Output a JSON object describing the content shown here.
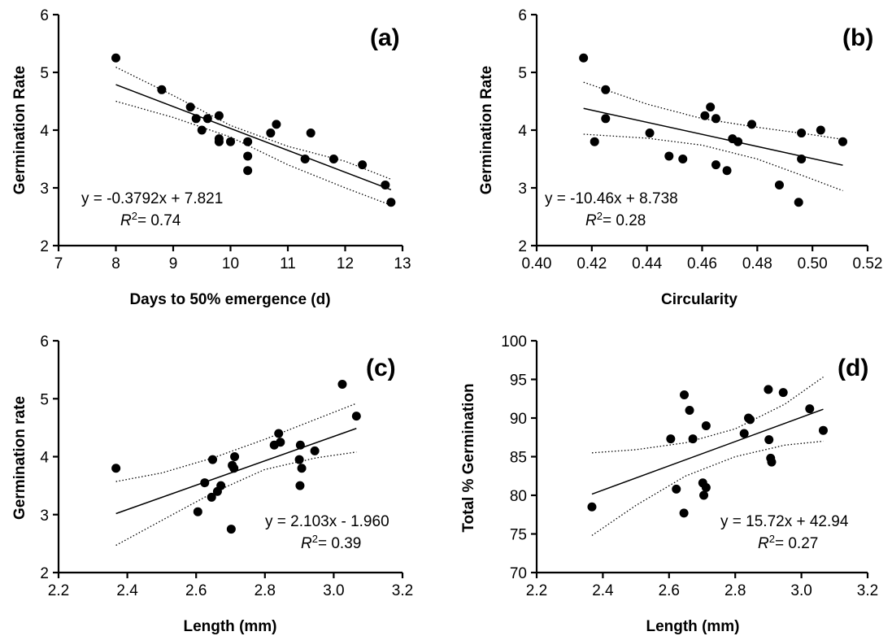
{
  "chart_data": [
    {
      "type": "scatter",
      "panel": "(a)",
      "xlabel": "Days to 50% emergence (d)",
      "ylabel": "Germination Rate",
      "xlim": [
        7,
        13
      ],
      "ylim": [
        2,
        6
      ],
      "xticks": [
        "7",
        "8",
        "9",
        "10",
        "11",
        "12",
        "13"
      ],
      "yticks": [
        "2",
        "3",
        "4",
        "5",
        "6"
      ],
      "points": [
        [
          8.0,
          5.25
        ],
        [
          8.8,
          4.7
        ],
        [
          9.3,
          4.4
        ],
        [
          9.4,
          4.2
        ],
        [
          9.5,
          4.0
        ],
        [
          9.6,
          4.2
        ],
        [
          9.8,
          4.25
        ],
        [
          9.8,
          3.85
        ],
        [
          9.8,
          3.8
        ],
        [
          10.0,
          3.8
        ],
        [
          10.3,
          3.8
        ],
        [
          10.3,
          3.55
        ],
        [
          10.3,
          3.3
        ],
        [
          10.7,
          3.95
        ],
        [
          10.8,
          4.1
        ],
        [
          11.3,
          3.5
        ],
        [
          11.4,
          3.95
        ],
        [
          11.8,
          3.5
        ],
        [
          12.3,
          3.4
        ],
        [
          12.7,
          3.05
        ],
        [
          12.8,
          2.75
        ]
      ],
      "fit": {
        "slope": -0.3792,
        "intercept": 7.821,
        "x_range": [
          8.0,
          12.8
        ]
      },
      "ci_upper": [
        [
          8.0,
          5.09
        ],
        [
          9.0,
          4.6
        ],
        [
          10.0,
          4.08
        ],
        [
          11.0,
          3.72
        ],
        [
          12.0,
          3.46
        ],
        [
          12.8,
          3.15
        ]
      ],
      "ci_lower": [
        [
          8.0,
          4.5
        ],
        [
          9.0,
          4.22
        ],
        [
          10.0,
          3.88
        ],
        [
          11.0,
          3.4
        ],
        [
          12.0,
          3.0
        ],
        [
          12.8,
          2.7
        ]
      ],
      "equation": "y = -0.3792x + 7.821",
      "r2_label": "R",
      "r2_sup": "2",
      "r2_value": "= 0.74"
    },
    {
      "type": "scatter",
      "panel": "(b)",
      "xlabel": "Circularity",
      "ylabel": "Germination Rate",
      "xlim": [
        0.4,
        0.52
      ],
      "ylim": [
        2,
        6
      ],
      "xticks": [
        "0.40",
        "0.42",
        "0.44",
        "0.46",
        "0.48",
        "0.50",
        "0.52"
      ],
      "yticks": [
        "2",
        "3",
        "4",
        "5",
        "6"
      ],
      "points": [
        [
          0.417,
          5.25
        ],
        [
          0.421,
          3.8
        ],
        [
          0.425,
          4.7
        ],
        [
          0.425,
          4.2
        ],
        [
          0.441,
          3.95
        ],
        [
          0.448,
          3.55
        ],
        [
          0.453,
          3.5
        ],
        [
          0.461,
          4.25
        ],
        [
          0.463,
          4.4
        ],
        [
          0.465,
          4.2
        ],
        [
          0.465,
          3.4
        ],
        [
          0.469,
          3.3
        ],
        [
          0.471,
          3.85
        ],
        [
          0.473,
          3.8
        ],
        [
          0.478,
          4.1
        ],
        [
          0.488,
          3.05
        ],
        [
          0.495,
          2.75
        ],
        [
          0.496,
          3.95
        ],
        [
          0.496,
          3.5
        ],
        [
          0.503,
          4.0
        ],
        [
          0.511,
          3.8
        ]
      ],
      "fit": {
        "slope": -10.46,
        "intercept": 8.738,
        "x_range": [
          0.417,
          0.511
        ]
      },
      "ci_upper": [
        [
          0.417,
          4.83
        ],
        [
          0.44,
          4.45
        ],
        [
          0.46,
          4.2
        ],
        [
          0.48,
          4.05
        ],
        [
          0.5,
          3.92
        ],
        [
          0.511,
          3.84
        ]
      ],
      "ci_lower": [
        [
          0.417,
          3.93
        ],
        [
          0.44,
          3.86
        ],
        [
          0.46,
          3.74
        ],
        [
          0.48,
          3.5
        ],
        [
          0.5,
          3.15
        ],
        [
          0.511,
          2.95
        ]
      ],
      "equation": "y = -10.46x + 8.738",
      "r2_label": "R",
      "r2_sup": "2",
      "r2_value": "= 0.28"
    },
    {
      "type": "scatter",
      "panel": "(c)",
      "xlabel": "Length (mm)",
      "ylabel": "Germination rate",
      "xlim": [
        2.2,
        3.2
      ],
      "ylim": [
        2,
        6
      ],
      "xticks": [
        "2.2",
        "2.4",
        "2.6",
        "2.8",
        "3.0",
        "3.2"
      ],
      "yticks": [
        "2",
        "3",
        "4",
        "5",
        "6"
      ],
      "points": [
        [
          2.367,
          3.8
        ],
        [
          2.605,
          3.05
        ],
        [
          2.625,
          3.55
        ],
        [
          2.645,
          3.3
        ],
        [
          2.648,
          3.95
        ],
        [
          2.662,
          3.4
        ],
        [
          2.672,
          3.5
        ],
        [
          2.702,
          2.75
        ],
        [
          2.705,
          3.85
        ],
        [
          2.71,
          3.8
        ],
        [
          2.712,
          4.0
        ],
        [
          2.827,
          4.2
        ],
        [
          2.84,
          4.4
        ],
        [
          2.845,
          4.25
        ],
        [
          2.9,
          3.95
        ],
        [
          2.903,
          4.2
        ],
        [
          2.902,
          3.5
        ],
        [
          2.907,
          3.8
        ],
        [
          2.945,
          4.1
        ],
        [
          3.025,
          5.25
        ],
        [
          3.066,
          4.7
        ]
      ],
      "fit": {
        "slope": 2.103,
        "intercept": -1.96,
        "x_range": [
          2.367,
          3.066
        ]
      },
      "ci_upper": [
        [
          2.367,
          3.57
        ],
        [
          2.5,
          3.72
        ],
        [
          2.65,
          3.98
        ],
        [
          2.8,
          4.3
        ],
        [
          2.95,
          4.65
        ],
        [
          3.066,
          4.92
        ]
      ],
      "ci_lower": [
        [
          2.367,
          2.47
        ],
        [
          2.5,
          2.9
        ],
        [
          2.65,
          3.38
        ],
        [
          2.8,
          3.78
        ],
        [
          2.95,
          3.98
        ],
        [
          3.066,
          4.08
        ]
      ],
      "equation": "y = 2.103x - 1.960",
      "r2_label": "R",
      "r2_sup": "2",
      "r2_value": "= 0.39"
    },
    {
      "type": "scatter",
      "panel": "(d)",
      "xlabel": "Length (mm)",
      "ylabel": "Total % Germination",
      "xlim": [
        2.2,
        3.2
      ],
      "ylim": [
        70,
        100
      ],
      "xticks": [
        "2.2",
        "2.4",
        "2.6",
        "2.8",
        "3.0",
        "3.2"
      ],
      "yticks": [
        "70",
        "75",
        "80",
        "85",
        "90",
        "95",
        "100"
      ],
      "points": [
        [
          2.367,
          78.5
        ],
        [
          2.605,
          87.3
        ],
        [
          2.622,
          80.8
        ],
        [
          2.645,
          77.7
        ],
        [
          2.646,
          93.0
        ],
        [
          2.662,
          91.0
        ],
        [
          2.672,
          87.3
        ],
        [
          2.702,
          81.6
        ],
        [
          2.705,
          80.0
        ],
        [
          2.712,
          81.0
        ],
        [
          2.712,
          89.0
        ],
        [
          2.827,
          88.0
        ],
        [
          2.84,
          90.0
        ],
        [
          2.845,
          89.8
        ],
        [
          2.9,
          93.7
        ],
        [
          2.902,
          87.2
        ],
        [
          2.907,
          84.8
        ],
        [
          2.91,
          84.3
        ],
        [
          2.945,
          93.3
        ],
        [
          3.025,
          91.2
        ],
        [
          3.066,
          88.4
        ]
      ],
      "fit": {
        "slope": 15.72,
        "intercept": 42.94,
        "x_range": [
          2.367,
          3.066
        ]
      },
      "ci_upper": [
        [
          2.367,
          85.5
        ],
        [
          2.5,
          85.9
        ],
        [
          2.65,
          86.8
        ],
        [
          2.8,
          88.6
        ],
        [
          2.95,
          91.8
        ],
        [
          3.066,
          95.3
        ]
      ],
      "ci_lower": [
        [
          2.367,
          74.8
        ],
        [
          2.5,
          78.7
        ],
        [
          2.65,
          82.5
        ],
        [
          2.8,
          85.0
        ],
        [
          2.95,
          86.5
        ],
        [
          3.066,
          87.0
        ]
      ],
      "equation": "y = 15.72x + 42.94",
      "r2_label": "R",
      "r2_sup": "2",
      "r2_value": "= 0.27"
    }
  ]
}
